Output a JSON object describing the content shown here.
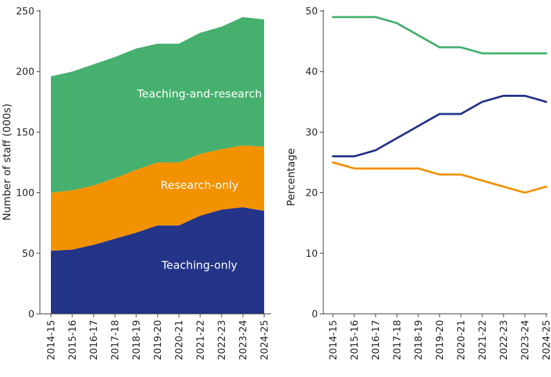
{
  "chart_data": [
    {
      "type": "area",
      "stacked": true,
      "categories": [
        "2014-15",
        "2015-16",
        "2016-17",
        "2017-18",
        "2018-19",
        "2019-20",
        "2020-21",
        "2021-22",
        "2022-23",
        "2023-24",
        "2024-25"
      ],
      "ylabel": "Number of staff (000s)",
      "ylim": [
        0,
        250
      ],
      "yticks": [
        0,
        50,
        100,
        150,
        200,
        250
      ],
      "grid": false,
      "series": [
        {
          "name": "Teaching-only",
          "color": "#243489",
          "values": [
            52,
            53,
            57,
            62,
            67,
            73,
            73,
            81,
            86,
            88,
            85
          ]
        },
        {
          "name": "Research-only",
          "color": "#f39200",
          "values": [
            48,
            49,
            49,
            50,
            52,
            52,
            52,
            51,
            50,
            51,
            53
          ]
        },
        {
          "name": "Teaching-and-research",
          "color": "#46b06e",
          "values": [
            96,
            98,
            100,
            100,
            100,
            98,
            98,
            100,
            101,
            106,
            105
          ]
        }
      ]
    },
    {
      "type": "line",
      "categories": [
        "2014-15",
        "2015-16",
        "2016-17",
        "2017-18",
        "2018-19",
        "2019-20",
        "2020-21",
        "2021-22",
        "2022-23",
        "2023-24",
        "2024-25"
      ],
      "ylabel": "Percentage",
      "ylim": [
        0,
        50
      ],
      "yticks": [
        0,
        10,
        20,
        30,
        40,
        50
      ],
      "grid": false,
      "series": [
        {
          "color": "#46b06e",
          "values": [
            49,
            49,
            49,
            48,
            46,
            44,
            44,
            43,
            43,
            43,
            43
          ]
        },
        {
          "color": "#243489",
          "values": [
            26,
            26,
            27,
            29,
            31,
            33,
            33,
            35,
            36,
            36,
            35
          ]
        },
        {
          "color": "#f39200",
          "values": [
            25,
            24,
            24,
            24,
            24,
            23,
            23,
            22,
            21,
            20,
            21
          ]
        }
      ]
    }
  ]
}
